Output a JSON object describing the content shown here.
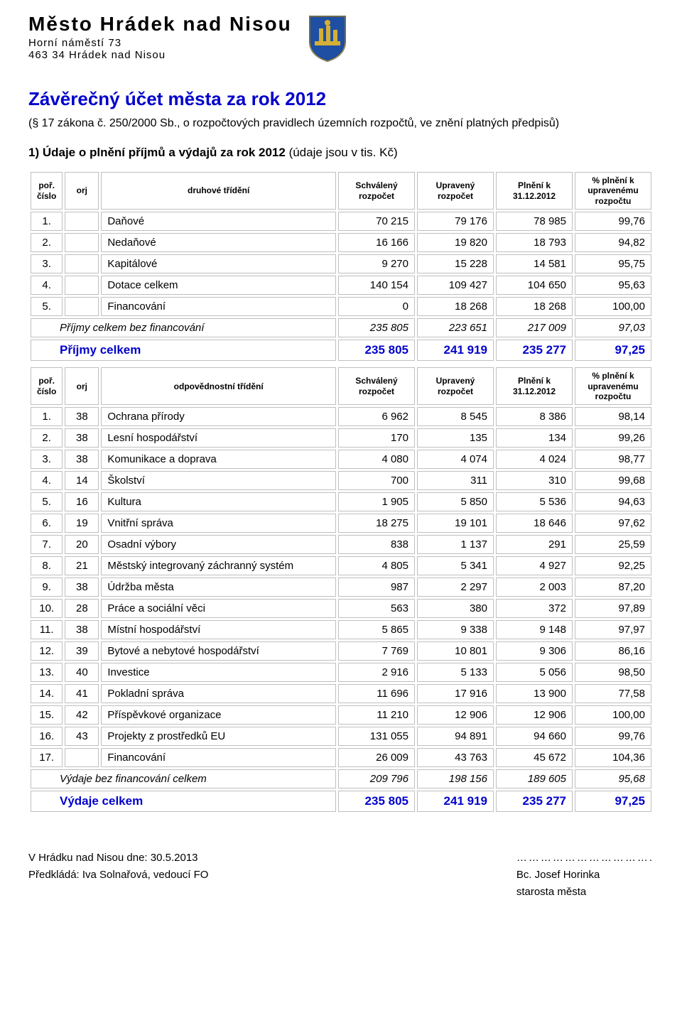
{
  "header": {
    "city": "Město Hrádek nad Nisou",
    "addr1": "Horní náměstí 73",
    "addr2": "463 34  Hrádek nad Nisou"
  },
  "title": "Závěrečný účet města za rok 2012",
  "law_ref": "(§ 17 zákona č. 250/2000 Sb., o rozpočtových pravidlech územních rozpočtů, ve znění platných předpisů)",
  "section1_label": "1) Údaje o plnění příjmů a výdajů za rok 2012",
  "section1_suffix": " (údaje jsou v tis. Kč)",
  "table1": {
    "headers": {
      "por": "poř. číslo",
      "orj": "orj",
      "name": "druhové třídění",
      "schv": "Schválený rozpočet",
      "upr": "Upravený rozpočet",
      "pln": "Plnění k 31.12.2012",
      "pct": "% plnění k upravenému rozpočtu"
    },
    "rows": [
      {
        "n": "1.",
        "orj": "",
        "name": "Daňové",
        "a": "70 215",
        "b": "79 176",
        "c": "78 985",
        "p": "99,76"
      },
      {
        "n": "2.",
        "orj": "",
        "name": "Nedaňové",
        "a": "16 166",
        "b": "19 820",
        "c": "18 793",
        "p": "94,82"
      },
      {
        "n": "3.",
        "orj": "",
        "name": "Kapitálové",
        "a": "9 270",
        "b": "15 228",
        "c": "14 581",
        "p": "95,75"
      },
      {
        "n": "4.",
        "orj": "",
        "name": "Dotace celkem",
        "a": "140 154",
        "b": "109 427",
        "c": "104 650",
        "p": "95,63"
      },
      {
        "n": "5.",
        "orj": "",
        "name": "Financování",
        "a": "0",
        "b": "18 268",
        "c": "18 268",
        "p": "100,00"
      }
    ],
    "subtotal": {
      "name": "Příjmy celkem bez financování",
      "a": "235 805",
      "b": "223 651",
      "c": "217 009",
      "p": "97,03"
    },
    "total": {
      "name": "Příjmy celkem",
      "a": "235 805",
      "b": "241 919",
      "c": "235 277",
      "p": "97,25"
    }
  },
  "table2": {
    "headers": {
      "por": "poř. číslo",
      "orj": "orj",
      "name": "odpovědnostní třídění",
      "schv": "Schválený rozpočet",
      "upr": "Upravený rozpočet",
      "pln": "Plnění k 31.12.2012",
      "pct": "% plnění k upravenému rozpočtu"
    },
    "rows": [
      {
        "n": "1.",
        "orj": "38",
        "name": "Ochrana přírody",
        "a": "6 962",
        "b": "8 545",
        "c": "8 386",
        "p": "98,14"
      },
      {
        "n": "2.",
        "orj": "38",
        "name": "Lesní hospodářství",
        "a": "170",
        "b": "135",
        "c": "134",
        "p": "99,26"
      },
      {
        "n": "3.",
        "orj": "38",
        "name": "Komunikace a doprava",
        "a": "4 080",
        "b": "4 074",
        "c": "4 024",
        "p": "98,77"
      },
      {
        "n": "4.",
        "orj": "14",
        "name": "Školství",
        "a": "700",
        "b": "311",
        "c": "310",
        "p": "99,68"
      },
      {
        "n": "5.",
        "orj": "16",
        "name": "Kultura",
        "a": "1 905",
        "b": "5 850",
        "c": "5 536",
        "p": "94,63"
      },
      {
        "n": "6.",
        "orj": "19",
        "name": "Vnitřní správa",
        "a": "18 275",
        "b": "19 101",
        "c": "18 646",
        "p": "97,62"
      },
      {
        "n": "7.",
        "orj": "20",
        "name": "Osadní výbory",
        "a": "838",
        "b": "1 137",
        "c": "291",
        "p": "25,59"
      },
      {
        "n": "8.",
        "orj": "21",
        "name": "Městský integrovaný záchranný systém",
        "a": "4 805",
        "b": "5 341",
        "c": "4 927",
        "p": "92,25"
      },
      {
        "n": "9.",
        "orj": "38",
        "name": "Údržba města",
        "a": "987",
        "b": "2 297",
        "c": "2 003",
        "p": "87,20"
      },
      {
        "n": "10.",
        "orj": "28",
        "name": "Práce a sociální věci",
        "a": "563",
        "b": "380",
        "c": "372",
        "p": "97,89"
      },
      {
        "n": "11.",
        "orj": "38",
        "name": "Místní hospodářství",
        "a": "5 865",
        "b": "9 338",
        "c": "9 148",
        "p": "97,97"
      },
      {
        "n": "12.",
        "orj": "39",
        "name": "Bytové a nebytové hospodářství",
        "a": "7 769",
        "b": "10 801",
        "c": "9 306",
        "p": "86,16"
      },
      {
        "n": "13.",
        "orj": "40",
        "name": "Investice",
        "a": "2 916",
        "b": "5 133",
        "c": "5 056",
        "p": "98,50"
      },
      {
        "n": "14.",
        "orj": "41",
        "name": "Pokladní správa",
        "a": "11 696",
        "b": "17 916",
        "c": "13 900",
        "p": "77,58"
      },
      {
        "n": "15.",
        "orj": "42",
        "name": "Příspěvkové organizace",
        "a": "11 210",
        "b": "12 906",
        "c": "12 906",
        "p": "100,00"
      },
      {
        "n": "16.",
        "orj": "43",
        "name": "Projekty z prostředků EU",
        "a": "131 055",
        "b": "94 891",
        "c": "94 660",
        "p": "99,76"
      },
      {
        "n": "17.",
        "orj": "",
        "name": "Financování",
        "a": "26 009",
        "b": "43 763",
        "c": "45 672",
        "p": "104,36"
      }
    ],
    "subtotal": {
      "name": "Výdaje bez financování celkem",
      "a": "209 796",
      "b": "198 156",
      "c": "189 605",
      "p": "95,68"
    },
    "total": {
      "name": "Výdaje celkem",
      "a": "235 805",
      "b": "241 919",
      "c": "235 277",
      "p": "97,25"
    }
  },
  "footer": {
    "date_line": "V Hrádku nad Nisou dne: 30.5.2013",
    "submitter": "Předkládá: Iva Solnařová, vedoucí FO",
    "sig_dots": "…………………………….",
    "signer1": "Bc. Josef Horinka",
    "signer2": "starosta města"
  },
  "colors": {
    "accent": "#0000cc",
    "border": "#bfbfbf",
    "text": "#000000",
    "background": "#ffffff"
  }
}
